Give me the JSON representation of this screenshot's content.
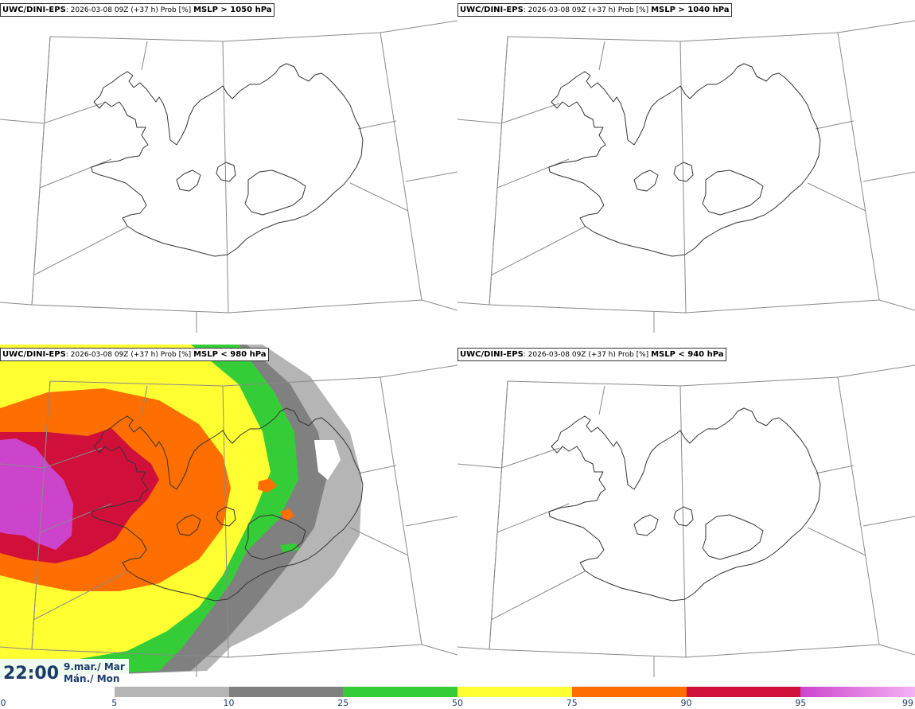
{
  "panels": [
    {
      "model": "UWC/DINI-EPS",
      "run": "2026-03-08 09Z (+37 h) Prob [%]",
      "variable": "MSLP > 1050 hPa"
    },
    {
      "model": "UWC/DINI-EPS",
      "run": "2026-03-08 09Z (+37 h) Prob [%]",
      "variable": "MSLP > 1040 hPa"
    },
    {
      "model": "UWC/DINI-EPS",
      "run": "2026-03-08 09Z (+37 h) Prob [%]",
      "variable": "MSLP < 980 hPa"
    },
    {
      "model": "UWC/DINI-EPS",
      "run": "2026-03-08 09Z (+37 h) Prob [%]",
      "variable": "MSLP < 940 hPa"
    }
  ],
  "valid_time": {
    "time": "22:00",
    "date_line1": "9.mar./ Mar",
    "date_line2": "Mán./ Mon"
  },
  "colorbar": {
    "ticks": [
      "0",
      "5",
      "10",
      "25",
      "50",
      "75",
      "90",
      "95",
      "99"
    ],
    "colors": [
      "#ffffff",
      "#b5b5b5",
      "#808080",
      "#35cd37",
      "#ffff32",
      "#ff6e00",
      "#d0103a",
      "#cc44cc",
      "#f4b2f4"
    ]
  }
}
